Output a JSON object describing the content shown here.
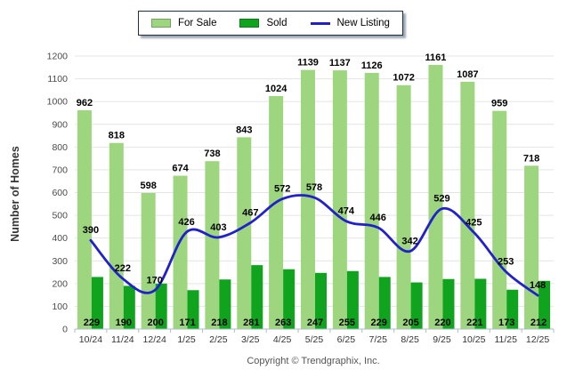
{
  "chart_data": {
    "type": "bar+line",
    "categories": [
      "10/24",
      "11/24",
      "12/24",
      "1/25",
      "2/25",
      "3/25",
      "4/25",
      "5/25",
      "6/25",
      "7/25",
      "8/25",
      "9/25",
      "10/25",
      "11/25",
      "12/25"
    ],
    "series": [
      {
        "name": "For Sale",
        "type": "bar",
        "color": "#9DD67E",
        "values": [
          962,
          818,
          598,
          674,
          738,
          843,
          1024,
          1139,
          1137,
          1126,
          1072,
          1161,
          1087,
          959,
          718
        ]
      },
      {
        "name": "Sold",
        "type": "bar",
        "color": "#10A41E",
        "values": [
          229,
          190,
          200,
          171,
          218,
          281,
          263,
          247,
          255,
          229,
          205,
          220,
          221,
          173,
          212
        ]
      },
      {
        "name": "New Listing",
        "type": "line",
        "color": "#2121CC",
        "values": [
          390,
          222,
          170,
          426,
          403,
          467,
          572,
          578,
          474,
          446,
          342,
          529,
          425,
          253,
          148
        ]
      }
    ],
    "title": "",
    "xlabel": "",
    "ylabel": "Number of Homes",
    "ylim": [
      0,
      1200
    ],
    "yticks": [
      0,
      100,
      200,
      300,
      400,
      500,
      600,
      700,
      800,
      900,
      1000,
      1100,
      1200
    ],
    "grid": true,
    "legend_position": "top"
  },
  "footer": {
    "copyright": "Copyright © Trendgraphix, Inc."
  }
}
